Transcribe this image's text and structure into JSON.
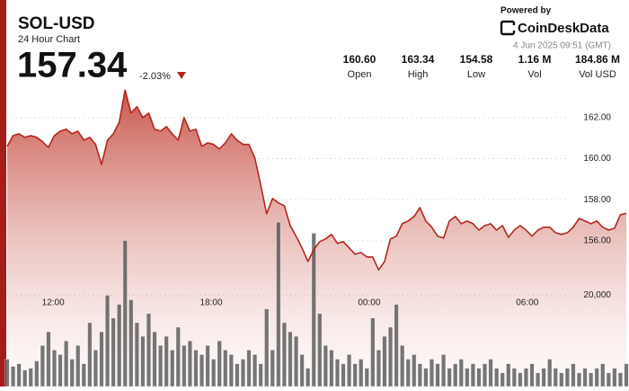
{
  "header": {
    "title": "SOL-USD",
    "subtitle": "24 Hour Chart",
    "price": "157.34",
    "change": "-2.03%"
  },
  "stats": [
    {
      "value": "160.60",
      "label": "Open"
    },
    {
      "value": "163.34",
      "label": "High"
    },
    {
      "value": "154.58",
      "label": "Low"
    },
    {
      "value": "1.16 M",
      "label": "Vol"
    },
    {
      "value": "184.86 M",
      "label": "Vol USD"
    }
  ],
  "branding": {
    "powered": "Powered by",
    "logo": "CoinDeskData",
    "timestamp": "4 Jun 2025 09:51 (GMT)"
  },
  "chart_data": {
    "type": "line",
    "ylim": [
      148.9,
      163.35
    ],
    "yticks": [
      {
        "value": 156,
        "label": "156.00"
      },
      {
        "value": 158,
        "label": "158.00"
      },
      {
        "value": 160,
        "label": "160.00"
      },
      {
        "value": 162,
        "label": "162.00"
      }
    ],
    "y2lim": [
      0,
      65000
    ],
    "y2ticks": [
      {
        "value": 20000,
        "label": "20,000"
      }
    ],
    "xticks": [
      {
        "value": 7.8,
        "label": "12:00"
      },
      {
        "value": 34.6,
        "label": "18:00"
      },
      {
        "value": 61.4,
        "label": "00:00"
      },
      {
        "value": 88.2,
        "label": "06:00"
      }
    ],
    "grid": true,
    "series": [
      {
        "type": "line",
        "color": "#b3261e",
        "values": [
          160.6,
          161.12,
          161.21,
          161.04,
          161.12,
          161.04,
          160.82,
          160.55,
          161.12,
          161.34,
          161.43,
          161.21,
          161.34,
          160.9,
          161.04,
          160.69,
          159.72,
          160.9,
          161.21,
          161.78,
          163.34,
          162.22,
          162.53,
          162.0,
          162.22,
          161.43,
          161.34,
          161.56,
          161.21,
          160.9,
          162.0,
          161.34,
          161.43,
          160.6,
          160.77,
          160.69,
          160.47,
          160.77,
          161.21,
          160.9,
          160.69,
          160.69,
          160.03,
          158.71,
          157.31,
          158.06,
          157.84,
          157.71,
          156.74,
          156.22,
          155.65,
          154.99,
          155.56,
          155.96,
          156.09,
          156.31,
          155.87,
          155.96,
          155.65,
          155.34,
          155.43,
          155.21,
          155.21,
          154.58,
          154.99,
          156.09,
          156.22,
          156.83,
          156.96,
          157.18,
          157.62,
          156.96,
          156.66,
          156.22,
          156.13,
          156.96,
          157.18,
          156.83,
          156.96,
          156.83,
          156.52,
          156.74,
          156.83,
          156.52,
          156.74,
          156.17,
          156.52,
          156.74,
          156.52,
          156.22,
          156.52,
          156.66,
          156.66,
          156.39,
          156.31,
          156.39,
          156.66,
          157.09,
          156.96,
          156.83,
          156.96,
          156.66,
          156.52,
          156.61,
          157.27,
          157.34
        ]
      },
      {
        "type": "bar",
        "axis": "y2",
        "color": "#4a4a4a",
        "values": [
          6000,
          4400,
          5000,
          3600,
          4000,
          5600,
          9000,
          12000,
          8000,
          7000,
          10000,
          6000,
          9000,
          5000,
          14000,
          8000,
          12000,
          20000,
          15000,
          18000,
          32000,
          19000,
          14000,
          11000,
          16000,
          12000,
          9000,
          11000,
          8000,
          13000,
          9000,
          10000,
          8000,
          7000,
          9000,
          6000,
          10000,
          8000,
          7000,
          5000,
          6000,
          8000,
          7000,
          5000,
          17000,
          8000,
          36000,
          14000,
          12000,
          11000,
          7000,
          4000,
          33600,
          16000,
          9000,
          8000,
          6000,
          5000,
          7000,
          5000,
          6000,
          4000,
          15000,
          8000,
          11000,
          13000,
          18000,
          9000,
          6000,
          7000,
          5000,
          4000,
          6000,
          5000,
          7000,
          4000,
          5000,
          6000,
          4000,
          5000,
          4000,
          5000,
          6000,
          4000,
          3000,
          5000,
          4000,
          3000,
          4000,
          5000,
          3000,
          4000,
          6000,
          4000,
          3000,
          4000,
          5000,
          3000,
          4000,
          3000,
          4000,
          5000,
          3000,
          4000,
          3000,
          5000
        ]
      }
    ]
  }
}
